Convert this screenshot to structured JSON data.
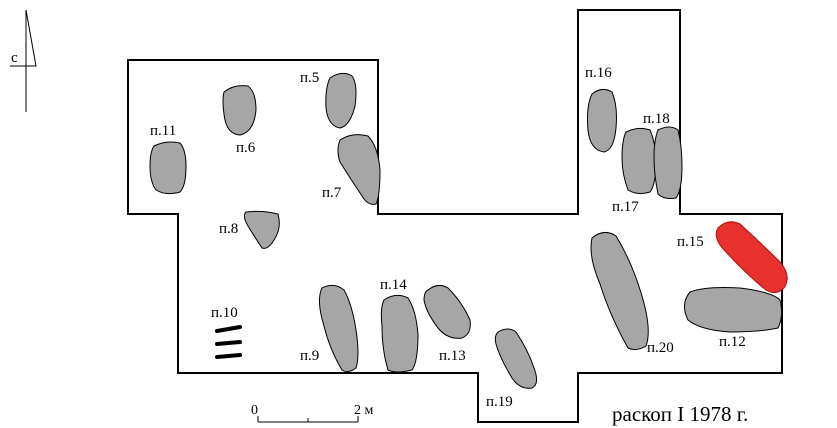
{
  "north_arrow": {
    "label": "с"
  },
  "pits": [
    {
      "id": "p5",
      "label": "п.5"
    },
    {
      "id": "p6",
      "label": "п.6"
    },
    {
      "id": "p7",
      "label": "п.7"
    },
    {
      "id": "p8",
      "label": "п.8"
    },
    {
      "id": "p9",
      "label": "п.9"
    },
    {
      "id": "p10",
      "label": "п.10"
    },
    {
      "id": "p11",
      "label": "п.11"
    },
    {
      "id": "p12",
      "label": "п.12"
    },
    {
      "id": "p13",
      "label": "п.13"
    },
    {
      "id": "p14",
      "label": "п.14"
    },
    {
      "id": "p15",
      "label": "п.15",
      "highlight": true
    },
    {
      "id": "p16",
      "label": "п.16"
    },
    {
      "id": "p17",
      "label": "п.17"
    },
    {
      "id": "p18",
      "label": "п.18"
    },
    {
      "id": "p19",
      "label": "п.19"
    },
    {
      "id": "p20",
      "label": "п.20"
    }
  ],
  "colors": {
    "pit_fill": "#a6a6a6",
    "highlight_fill": "#e8302e",
    "outline": "#000000"
  },
  "scale_bar": {
    "start_label": "0",
    "end_label": "2 м"
  },
  "caption": "раскоп I 1978 г."
}
